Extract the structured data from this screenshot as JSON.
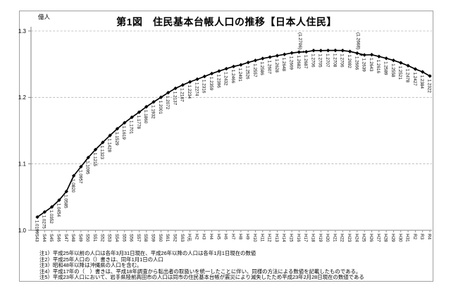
{
  "chart": {
    "unit": "億人",
    "title": "第1図　住民基本台帳人口の推移【日本人住民】",
    "notes": [
      "注1）平成25年以前の人口は各年3月31日現在、平成26年以降の人口は各年1月1日現在の数値",
      "注2）平成25年人口の（）書きは、同年1月1日の人口",
      "注3）昭和48年以降は沖縄県の人口を含む。",
      "注4）平成17年の（　）書きは、平成18年調査から転出者の取扱いを統一したことに伴い、同様の方法による数値を記載したものである。",
      "注5）平成23年人口において、岩手県陸前高田市の人口は同市の住民基本台帳が震災により滅失したため平成23年2月28日現在の数値である"
    ]
  },
  "chart_data": {
    "type": "line",
    "title": "第1図　住民基本台帳人口の推移【日本人住民】",
    "unit": "億人",
    "ylabel": "億人",
    "xlabel": "",
    "ylim": [
      1.0,
      1.3
    ],
    "yticks": [
      1.0,
      1.1,
      1.2,
      1.3
    ],
    "grid": "horizontal-dashed",
    "legend": "none",
    "line_color": "#000000",
    "marker": "diamond",
    "grid_color": "#b3b3b3",
    "axis_color": "#808080",
    "categories": [
      "S43",
      "S44",
      "S45",
      "S46",
      "S47",
      "S48",
      "S49",
      "S50",
      "S51",
      "S52",
      "S53",
      "S54",
      "S55",
      "S56",
      "S57",
      "S58",
      "S59",
      "S60",
      "S61",
      "S62",
      "S63",
      "H元",
      "H2",
      "H3",
      "H4",
      "H5",
      "H6",
      "H7",
      "H8",
      "H9",
      "H10",
      "H11",
      "H12",
      "H13",
      "H14",
      "H15",
      "H16",
      "H17",
      "H18",
      "H19",
      "H20",
      "H21",
      "H22",
      "H23",
      "H24",
      "H25",
      "H26",
      "H27",
      "H28",
      "H29",
      "H30",
      "H31",
      "R2",
      "R3",
      "R4"
    ],
    "values": [
      1.0199,
      1.0275,
      1.0352,
      1.0454,
      1.0585,
      1.082,
      1.0957,
      1.1095,
      1.1215,
      1.1323,
      1.1428,
      1.1529,
      1.1619,
      1.1701,
      1.1778,
      1.186,
      1.1932,
      1.2001,
      1.2072,
      1.2137,
      1.2187,
      1.2234,
      1.2274,
      1.2316,
      1.2359,
      1.2396,
      1.2432,
      1.2466,
      1.2491,
      1.2526,
      1.2557,
      1.2586,
      1.2607,
      1.2628,
      1.2648,
      1.2669,
      1.2682,
      1.2687,
      1.2706,
      1.2705,
      1.2707,
      1.2708,
      1.2706,
      1.2692,
      1.2666,
      1.2639,
      1.2643,
      1.2616,
      1.2589,
      1.2558,
      1.2521,
      1.2478,
      1.2427,
      1.2384,
      1.2322
    ],
    "annotations": [
      {
        "category": "H17",
        "label": "(1.2706)",
        "value_alt": 1.2706
      },
      {
        "category": "H25",
        "label": "(1.2668)",
        "value_alt": 1.2668
      }
    ]
  }
}
